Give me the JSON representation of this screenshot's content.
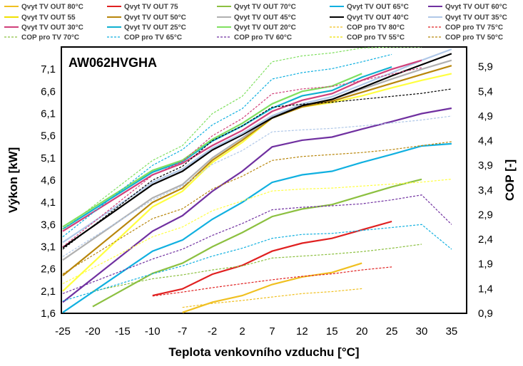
{
  "chart_data": {
    "type": "line",
    "model": "AW062HVGHA",
    "xlabel": "Teplota venkovního vzduchu [°C]",
    "ylabel": "Výkon [kW]",
    "y2label": "COP [-]",
    "x_tick_labels": [
      "-25",
      "-20",
      "-15",
      "-10",
      "-7",
      "-2",
      "2",
      "7",
      "12",
      "15",
      "20",
      "25",
      "30",
      "35"
    ],
    "y_tick_labels": [
      "1,6",
      "2,1",
      "2,6",
      "3,1",
      "3,6",
      "4,1",
      "4,6",
      "5,1",
      "5,6",
      "6,1",
      "6,6",
      "7,1"
    ],
    "y2_tick_labels": [
      "0,9",
      "1,4",
      "1,9",
      "2,4",
      "2,9",
      "3,4",
      "3,9",
      "4,4",
      "4,9",
      "5,4",
      "5,9"
    ],
    "ylim": [
      1.6,
      7.6
    ],
    "y2lim": [
      0.9,
      6.3
    ],
    "grid": false,
    "legend_position": "top",
    "series": [
      {
        "name": "Qvyt TV OUT 80°C",
        "axis": "left",
        "color": "#f0c020",
        "dash": false,
        "x": [
          "-7",
          "-2",
          "2",
          "7",
          "12",
          "15",
          "20"
        ],
        "y": [
          1.62,
          1.85,
          2.0,
          2.25,
          2.42,
          2.52,
          2.73
        ]
      },
      {
        "name": "Qvyt TV OUT 75",
        "axis": "left",
        "color": "#e02020",
        "dash": false,
        "x": [
          "-10",
          "-7",
          "-2",
          "2",
          "7",
          "12",
          "15",
          "20",
          "25"
        ],
        "y": [
          2.0,
          2.15,
          2.48,
          2.68,
          3.0,
          3.18,
          3.29,
          3.48,
          3.67
        ]
      },
      {
        "name": "Qvyt TV OUT 70°C",
        "axis": "left",
        "color": "#8cc040",
        "dash": false,
        "x": [
          "-20",
          "-10",
          "-7",
          "-2",
          "2",
          "7",
          "12",
          "15",
          "20",
          "25",
          "30"
        ],
        "y": [
          1.75,
          2.5,
          2.73,
          3.1,
          3.42,
          3.78,
          3.95,
          4.05,
          4.25,
          4.45,
          4.62
        ]
      },
      {
        "name": "Qvyt TV OUT 65°C",
        "axis": "left",
        "color": "#10b0e0",
        "dash": false,
        "x": [
          "-25",
          "-10",
          "-7",
          "-2",
          "2",
          "7",
          "12",
          "15",
          "20",
          "25",
          "30",
          "35"
        ],
        "y": [
          1.62,
          3.0,
          3.25,
          3.72,
          4.1,
          4.55,
          4.72,
          4.8,
          5.0,
          5.18,
          5.37,
          5.42
        ]
      },
      {
        "name": "Qvyt TV OUT 60°C",
        "axis": "left",
        "color": "#7030a0",
        "dash": false,
        "x": [
          "-25",
          "-10",
          "-7",
          "-2",
          "2",
          "7",
          "12",
          "15",
          "20",
          "25",
          "30",
          "35"
        ],
        "y": [
          1.85,
          3.45,
          3.8,
          4.35,
          4.8,
          5.35,
          5.5,
          5.57,
          5.75,
          5.92,
          6.1,
          6.22
        ]
      },
      {
        "name": "Qvyt TV OUT 55",
        "axis": "left",
        "color": "#ffff40",
        "dash": false,
        "x": [
          "-25",
          "-10",
          "-7",
          "-2",
          "2",
          "7",
          "12",
          "15",
          "20",
          "25",
          "30",
          "35"
        ],
        "y": [
          2.1,
          4.0,
          4.35,
          5.0,
          5.45,
          6.0,
          6.25,
          6.35,
          6.5,
          6.68,
          6.85,
          7.0
        ]
      },
      {
        "name": "Qvyt TV OUT 50°C",
        "axis": "left",
        "color": "#b8860b",
        "dash": false,
        "x": [
          "-25",
          "-10",
          "-7",
          "-2",
          "2",
          "7",
          "12",
          "15",
          "20",
          "25",
          "30",
          "35"
        ],
        "y": [
          2.45,
          4.1,
          4.42,
          5.05,
          5.5,
          6.0,
          6.25,
          6.38,
          6.58,
          6.78,
          6.98,
          7.18
        ]
      },
      {
        "name": "Qvyt TV OUT 45°C",
        "axis": "left",
        "color": "#b0b0b0",
        "dash": false,
        "x": [
          "-25",
          "-10",
          "-7",
          "-2",
          "2",
          "7",
          "12",
          "15",
          "20",
          "25",
          "30",
          "35"
        ],
        "y": [
          2.8,
          4.2,
          4.5,
          5.1,
          5.55,
          6.02,
          6.28,
          6.42,
          6.65,
          6.88,
          7.1,
          7.3
        ]
      },
      {
        "name": "Qvyt TV OUT 40°C",
        "axis": "left",
        "color": "#000000",
        "dash": false,
        "x": [
          "-25",
          "-10",
          "-7",
          "-2",
          "2",
          "7",
          "12",
          "15",
          "20",
          "25",
          "30",
          "35"
        ],
        "y": [
          3.08,
          4.5,
          4.8,
          5.28,
          5.62,
          6.0,
          6.28,
          6.42,
          6.68,
          6.95,
          7.2,
          7.45
        ]
      },
      {
        "name": "Qvyt TV OUT 35°C",
        "axis": "left",
        "color": "#b0c8e8",
        "dash": false,
        "x": [
          "-25",
          "-10",
          "-7",
          "-2",
          "2",
          "7",
          "12",
          "15",
          "20",
          "25",
          "30",
          "35"
        ],
        "y": [
          3.2,
          4.55,
          4.85,
          5.32,
          5.65,
          6.05,
          6.32,
          6.48,
          6.75,
          7.02,
          7.3,
          7.55
        ]
      },
      {
        "name": "Qvyt TV OUT 30°C",
        "axis": "left",
        "color": "#d0407a",
        "dash": false,
        "x": [
          "-25",
          "-10",
          "-7",
          "-2",
          "2",
          "7",
          "12",
          "15",
          "20",
          "25",
          "30"
        ],
        "y": [
          3.45,
          4.72,
          4.98,
          5.38,
          5.72,
          6.15,
          6.4,
          6.55,
          6.85,
          7.1,
          7.3
        ]
      },
      {
        "name": "Qvyt TV OUT 25°C",
        "axis": "left",
        "color": "#10b0d0",
        "dash": false,
        "x": [
          "-25",
          "-10",
          "-7",
          "-2",
          "2",
          "7",
          "12",
          "15",
          "20",
          "25"
        ],
        "y": [
          3.5,
          4.78,
          5.02,
          5.48,
          5.82,
          6.22,
          6.5,
          6.62,
          6.92,
          7.15
        ]
      },
      {
        "name": "Qvyt TV OUT 20°C",
        "axis": "left",
        "color": "#80e060",
        "dash": false,
        "x": [
          "-25",
          "-10",
          "-7",
          "-2",
          "2",
          "7",
          "12",
          "15",
          "20"
        ],
        "y": [
          3.55,
          4.82,
          5.05,
          5.52,
          5.88,
          6.32,
          6.6,
          6.72,
          7.0
        ]
      },
      {
        "name": "COP pro TV 80°C",
        "axis": "right",
        "color": "#f0c020",
        "dash": true,
        "x": [
          "-7",
          "-2",
          "2",
          "7",
          "12",
          "15",
          "20"
        ],
        "y": [
          1.02,
          1.1,
          1.16,
          1.23,
          1.3,
          1.34,
          1.4
        ]
      },
      {
        "name": "COP pro TV 75°C",
        "axis": "right",
        "color": "#e02020",
        "dash": true,
        "x": [
          "-10",
          "-7",
          "-2",
          "2",
          "7",
          "12",
          "15",
          "20",
          "25"
        ],
        "y": [
          1.25,
          1.33,
          1.42,
          1.5,
          1.58,
          1.65,
          1.7,
          1.78,
          1.84
        ]
      },
      {
        "name": "COP pro TV 70°C",
        "axis": "right",
        "color": "#8cc040",
        "dash": true,
        "x": [
          "-20",
          "-10",
          "-7",
          "-2",
          "2",
          "7",
          "12",
          "15",
          "20",
          "25",
          "30"
        ],
        "y": [
          1.35,
          1.6,
          1.68,
          1.78,
          1.86,
          2.02,
          2.06,
          2.1,
          2.15,
          2.22,
          2.3
        ]
      },
      {
        "name": "COP pro TV 65°C",
        "axis": "right",
        "color": "#10b0e0",
        "dash": true,
        "x": [
          "-25",
          "-10",
          "-7",
          "-2",
          "2",
          "7",
          "12",
          "15",
          "20",
          "25",
          "30",
          "35"
        ],
        "y": [
          1.15,
          1.7,
          1.86,
          2.06,
          2.22,
          2.42,
          2.5,
          2.52,
          2.58,
          2.64,
          2.7,
          2.2
        ]
      },
      {
        "name": "COP pro TV 60°C",
        "axis": "right",
        "color": "#7030a0",
        "dash": true,
        "x": [
          "-25",
          "-10",
          "-7",
          "-2",
          "2",
          "7",
          "12",
          "15",
          "20",
          "25",
          "30",
          "35"
        ],
        "y": [
          1.3,
          2.0,
          2.2,
          2.48,
          2.72,
          3.0,
          3.05,
          3.08,
          3.12,
          3.2,
          3.3,
          2.7
        ]
      },
      {
        "name": "COP pro TV 55°C",
        "axis": "right",
        "color": "#ffff40",
        "dash": true,
        "x": [
          "-25",
          "-10",
          "-7",
          "-2",
          "2",
          "7",
          "12",
          "15",
          "20",
          "25",
          "30",
          "35"
        ],
        "y": [
          1.5,
          2.45,
          2.65,
          2.98,
          3.18,
          3.38,
          3.42,
          3.44,
          3.48,
          3.52,
          3.56,
          3.62
        ]
      },
      {
        "name": "COP pro TV 50°C",
        "axis": "right",
        "color": "#b8860b",
        "dash": true,
        "x": [
          "-25",
          "-10",
          "-7",
          "-2",
          "2",
          "7",
          "12",
          "15",
          "20",
          "25",
          "30",
          "35"
        ],
        "y": [
          1.7,
          2.82,
          3.02,
          3.42,
          3.68,
          4.0,
          4.08,
          4.12,
          4.16,
          4.22,
          4.3,
          4.38
        ]
      },
      {
        "name": "COP pro TV 70°C",
        "axis": "right",
        "color": "#80e060",
        "dash": true,
        "x": [
          "-25",
          "-10",
          "-7",
          "-2",
          "2",
          "7",
          "12",
          "15",
          "20",
          "25",
          "30"
        ],
        "y": [
          2.6,
          4.0,
          4.3,
          4.95,
          5.3,
          6.0,
          6.12,
          6.18,
          6.28,
          6.3,
          6.3
        ]
      },
      {
        "name": "COP pro TV 65°C",
        "axis": "right",
        "color": "#10b0e0",
        "dash": true,
        "x": [
          "-25",
          "-10",
          "-7",
          "-2",
          "2",
          "7",
          "12",
          "15",
          "20",
          "25"
        ],
        "y": [
          2.45,
          3.9,
          4.22,
          4.72,
          5.05,
          5.65,
          5.78,
          5.86,
          6.0,
          6.15
        ]
      },
      {
        "name": "COP pro TV 60°C",
        "axis": "right",
        "color": "#000000",
        "dash": true,
        "x": [
          "-25",
          "-10",
          "-7",
          "-2",
          "2",
          "7",
          "12",
          "15",
          "20",
          "25",
          "30",
          "35"
        ],
        "y": [
          2.2,
          3.6,
          3.88,
          4.4,
          4.7,
          5.08,
          5.14,
          5.18,
          5.24,
          5.3,
          5.36,
          5.45
        ]
      },
      {
        "name": "COP pro TV 55°C",
        "axis": "right",
        "color": "#b0c8e8",
        "dash": true,
        "x": [
          "-25",
          "-10",
          "-7",
          "-2",
          "2",
          "7",
          "12",
          "15",
          "20",
          "25",
          "30",
          "35"
        ],
        "y": [
          2.05,
          3.2,
          3.48,
          3.92,
          4.2,
          4.58,
          4.62,
          4.65,
          4.7,
          4.76,
          4.82,
          4.9
        ]
      },
      {
        "name": "COP pro TV 50°C",
        "axis": "right",
        "color": "#d0407a",
        "dash": true,
        "x": [
          "-25",
          "-10",
          "-7",
          "-2",
          "2",
          "7",
          "12",
          "15",
          "20",
          "25",
          "30"
        ],
        "y": [
          2.25,
          3.7,
          3.98,
          4.5,
          4.85,
          5.35,
          5.45,
          5.5,
          5.62,
          5.75,
          5.88
        ]
      }
    ],
    "legend": [
      {
        "label": "Qvyt TV OUT 80°C",
        "color": "#f0c020",
        "dash": false
      },
      {
        "label": "Qvyt TV OUT 75",
        "color": "#e02020",
        "dash": false
      },
      {
        "label": "Qvyt TV OUT 70°C",
        "color": "#8cc040",
        "dash": false
      },
      {
        "label": "Qvyt TV OUT 65°C",
        "color": "#10b0e0",
        "dash": false
      },
      {
        "label": "Qvyt TV OUT 60°C",
        "color": "#7030a0",
        "dash": false
      },
      {
        "label": "Qvyt TV OUT 55",
        "color": "#f0e000",
        "dash": false
      },
      {
        "label": "Qvyt TV OUT 50°C",
        "color": "#b8860b",
        "dash": false
      },
      {
        "label": "Qvyt TV OUT 45°C",
        "color": "#b0b0b0",
        "dash": false
      },
      {
        "label": "Qvyt TV OUT 40°C",
        "color": "#000000",
        "dash": false
      },
      {
        "label": "Qvyt TV OUT 35°C",
        "color": "#b0c8e8",
        "dash": false
      },
      {
        "label": "Qvyt TV OUT 30°C",
        "color": "#d0407a",
        "dash": false
      },
      {
        "label": "Qvyt TV OUT 25°C",
        "color": "#10b0d0",
        "dash": false
      },
      {
        "label": "Qvyt TV OUT 20°C",
        "color": "#80e060",
        "dash": false
      },
      {
        "label": "COP pro TV 80°C",
        "color": "#f0c020",
        "dash": true
      },
      {
        "label": "COP pro TV 75°C",
        "color": "#e02020",
        "dash": true
      },
      {
        "label": "COP pro TV 70°C",
        "color": "#8cc040",
        "dash": true
      },
      {
        "label": "COP pro TV 65°C",
        "color": "#10b0e0",
        "dash": true
      },
      {
        "label": "COP pro TV 60°C",
        "color": "#7030a0",
        "dash": true
      },
      {
        "label": "COP pro TV 55°C",
        "color": "#f0e000",
        "dash": true
      },
      {
        "label": "COP pro TV 50°C",
        "color": "#b8860b",
        "dash": true
      }
    ]
  }
}
